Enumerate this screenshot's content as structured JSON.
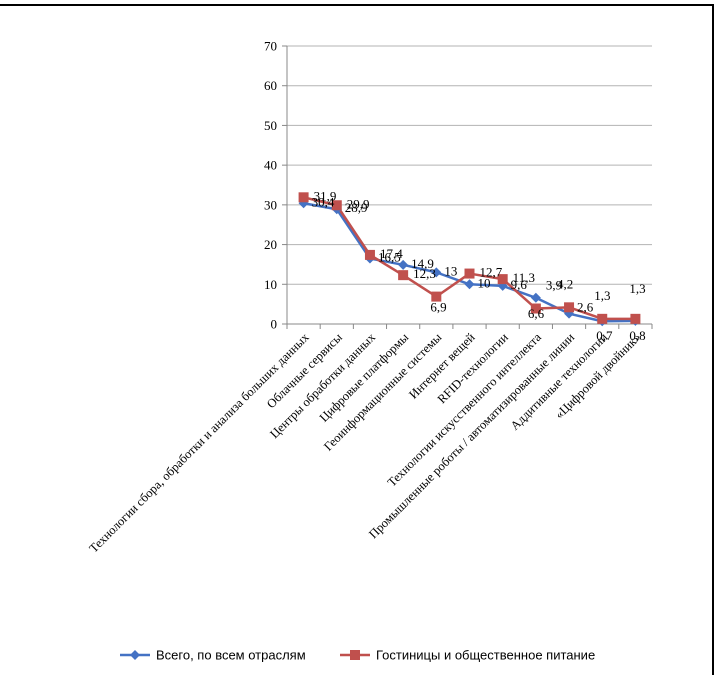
{
  "chart_data": {
    "type": "line",
    "title": "",
    "xlabel": "",
    "ylabel": "",
    "ylim": [
      0,
      70
    ],
    "yticks": [
      0,
      10,
      20,
      30,
      40,
      50,
      60,
      70
    ],
    "grid": true,
    "legend_position": "bottom",
    "categories": [
      "Технологии сбора, обработки и анализа больших данных",
      "Облачные сервисы",
      "Центры обработки данных",
      "Цифровые платформы",
      "Геоинформационные системы",
      "Интернет вещей",
      "RFID-технологии",
      "Технологии искусственного интеллекта",
      "Промышленные роботы / автоматизированные линии",
      "Аддитивные технологии",
      "«Цифровой двойник»"
    ],
    "series": [
      {
        "name": "Всего, по всем отраслям",
        "color": "#4472C4",
        "marker": "diamond",
        "values": [
          30.4,
          28.9,
          16.5,
          14.9,
          13,
          10,
          9.6,
          6.6,
          2.6,
          0.7,
          0.8
        ],
        "labels": [
          "30,4",
          "28,9",
          "16,5",
          "14,9",
          "13",
          "10",
          "9,6",
          "6,6",
          "2,6",
          "0,7",
          "0,8"
        ]
      },
      {
        "name": "Гостиницы и общественное питание",
        "color": "#C0504D",
        "marker": "square",
        "values": [
          31.9,
          29.9,
          17.4,
          12.3,
          6.9,
          12.7,
          11.3,
          3.9,
          4.2,
          1.3,
          1.3
        ],
        "labels": [
          "31,9",
          "29,9",
          "17,4",
          "12,3",
          "6,9",
          "12,7",
          "11,3",
          "3,9",
          "4,2",
          "1,3",
          "1,3"
        ]
      }
    ]
  }
}
